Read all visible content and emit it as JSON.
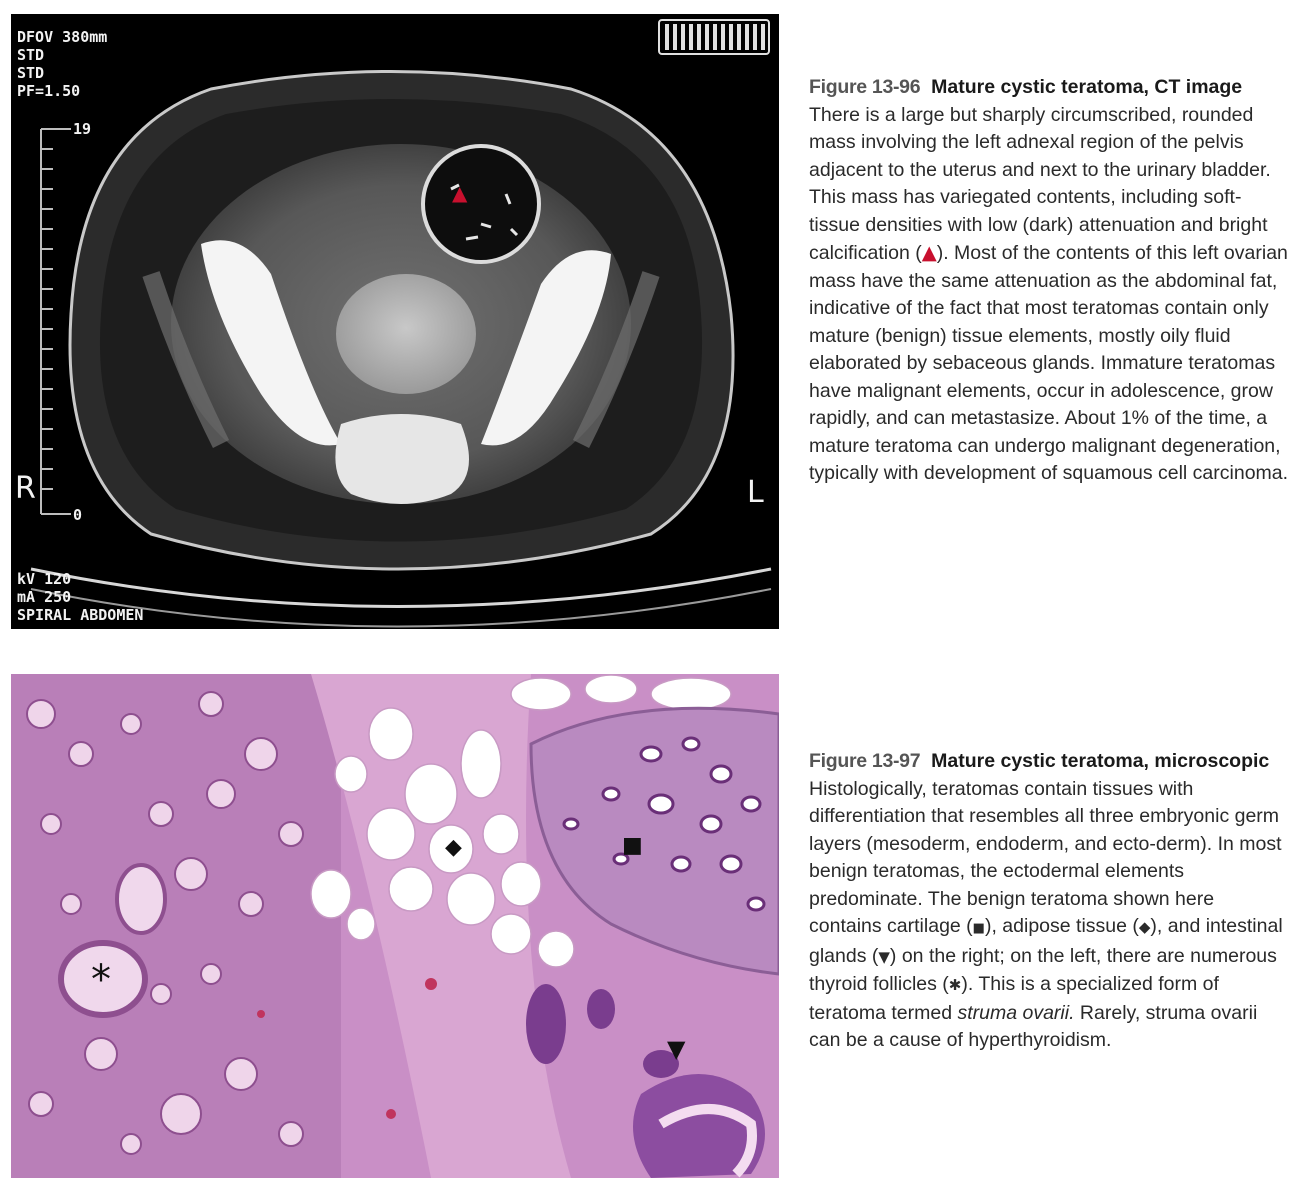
{
  "figure_96": {
    "overlay": {
      "top_left": [
        "DFOV 380mm",
        "STD",
        "STD",
        "PF=1.50"
      ],
      "scale_top": "19",
      "scale_bottom": "0",
      "side_right": "R",
      "side_left": "L",
      "bottom_left": [
        "kV 120",
        "mA 250",
        "SPIRAL ABDOMEN"
      ]
    },
    "number": "Figure 13-96",
    "title": "Mature cystic teratoma, CT image",
    "text_before_marker": "There is a large but sharply circumscribed, rounded mass involving the left adnexal region of the pelvis adjacent to the uterus and next to the urinary bladder. This mass has variegated contents, including soft-tissue densities with low (dark) attenuation and bright calcification (",
    "marker": "▲",
    "text_after_marker": "). Most of the contents of this left ovarian mass have the same attenuation as the abdominal fat, indicative of the fact that most teratomas contain only mature (benign) tissue elements, mostly oily fluid elaborated by sebaceous glands. Immature teratomas have malignant elements, occur in adolescence, grow rapidly, and can metastasize. About 1% of the time, a mature teratoma can undergo malignant degeneration, typically with development of squamous cell carcinoma."
  },
  "figure_97": {
    "markers": {
      "follicle": "*",
      "adipose": "◆",
      "cartilage": "■",
      "glands": "▼"
    },
    "number": "Figure 13-97",
    "title": "Mature cystic teratoma, microscopic",
    "text_1": "Histologically, teratomas contain tissues with differentiation that resembles all three embryonic germ layers (mesoderm, endoderm, and ecto-derm). In most benign teratomas, the ectodermal elements predominate. The benign teratoma shown here contains cartilage (",
    "marker_cartilage": "■",
    "text_2": "), adipose tissue (",
    "marker_adipose": "◆",
    "text_3": "), and intestinal glands (",
    "marker_glands": "▼",
    "text_4": ") on the right; on the left, there are numerous thyroid follicles (",
    "marker_follicle": "✱",
    "text_5": "). This is a specialized form of teratoma termed ",
    "italic_term": "struma ovarii.",
    "text_6": " Rarely, struma ovarii can be a cause of hyperthyroidism."
  }
}
